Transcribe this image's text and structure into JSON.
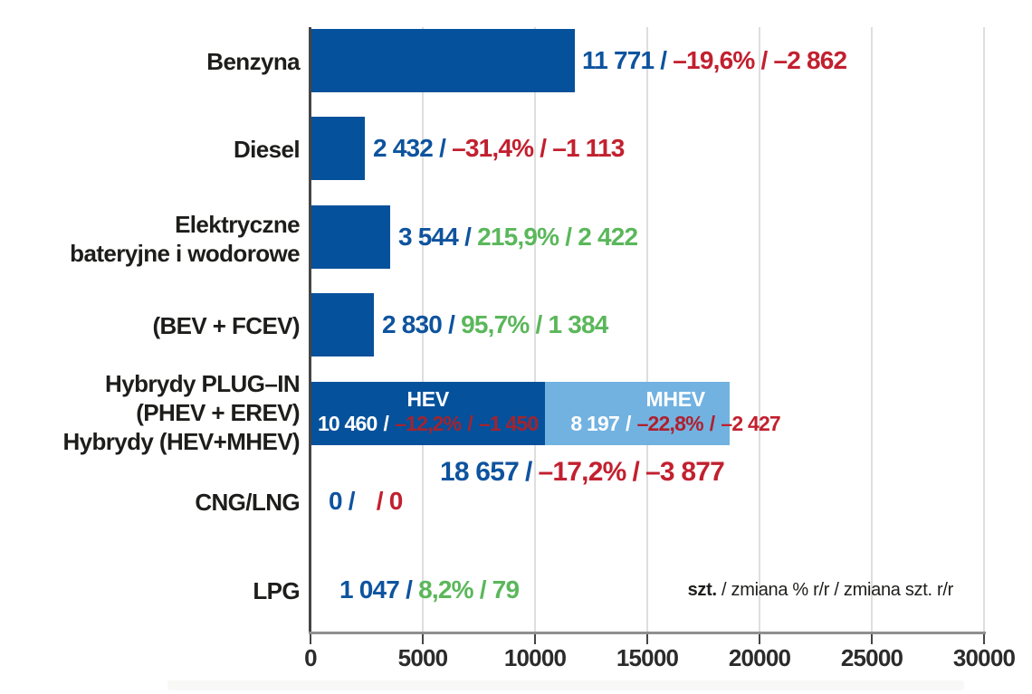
{
  "chart_data": {
    "type": "bar",
    "orientation": "horizontal",
    "separator": "/",
    "x_axis": {
      "min": 0,
      "max": 30000,
      "grid": true,
      "ticks": [
        "0",
        "5000",
        "10000",
        "15000",
        "20000",
        "25000",
        "30000"
      ]
    },
    "legend": {
      "unit": "szt.",
      "rest": " / zmiana % r/r / zmiana szt. r/r"
    },
    "rows": [
      {
        "label_lines": [
          "Benzyna"
        ],
        "value": 11771,
        "count": "11 771",
        "pct": "–19,6%",
        "diff": "–2 862",
        "trend": "down"
      },
      {
        "label_lines": [
          "Diesel"
        ],
        "value": 2432,
        "count": "2 432",
        "pct": "–31,4%",
        "diff": "–1 113",
        "trend": "down"
      },
      {
        "label_lines": [
          "Elektryczne",
          "bateryjne i wodorowe"
        ],
        "value": 3544,
        "count": "3 544",
        "pct": "215,9%",
        "diff": "2 422",
        "trend": "up"
      },
      {
        "label_lines": [
          "(BEV + FCEV)"
        ],
        "value": 2830,
        "count": "2 830",
        "pct": "95,7%",
        "diff": "1 384",
        "trend": "up"
      },
      {
        "label_lines": [
          "Hybrydy PLUG–IN",
          "(PHEV + EREV)",
          "Hybrydy (HEV+MHEV)"
        ],
        "stacked": true,
        "segments": [
          {
            "name": "HEV",
            "value": 10460,
            "count": "10 460",
            "pct": "–12,2%",
            "diff": "–1 450",
            "trend": "down"
          },
          {
            "name": "MHEV",
            "value": 8197,
            "count": "8 197",
            "pct": "–22,8%",
            "diff": "–2 427",
            "trend": "down"
          }
        ],
        "total": {
          "value": 18657,
          "count": "18 657",
          "pct": "–17,2%",
          "diff": "–3 877",
          "trend": "down"
        }
      },
      {
        "label_lines": [
          "CNG/LNG"
        ],
        "value": 0,
        "count": "0",
        "pct": "",
        "diff": "0",
        "trend": "down"
      },
      {
        "label_lines": [
          "LPG"
        ],
        "value": 1047,
        "count": "1 047",
        "pct": "8,2%",
        "diff": "79",
        "trend": "up"
      }
    ],
    "colors": {
      "bar_dark_blue": "#05519b",
      "bar_light_blue": "#71b2e1",
      "value_blue": "#0e539e",
      "negative_red": "#c2202f",
      "positive_green": "#5bb75b",
      "label_black": "#1d1d1b"
    }
  }
}
